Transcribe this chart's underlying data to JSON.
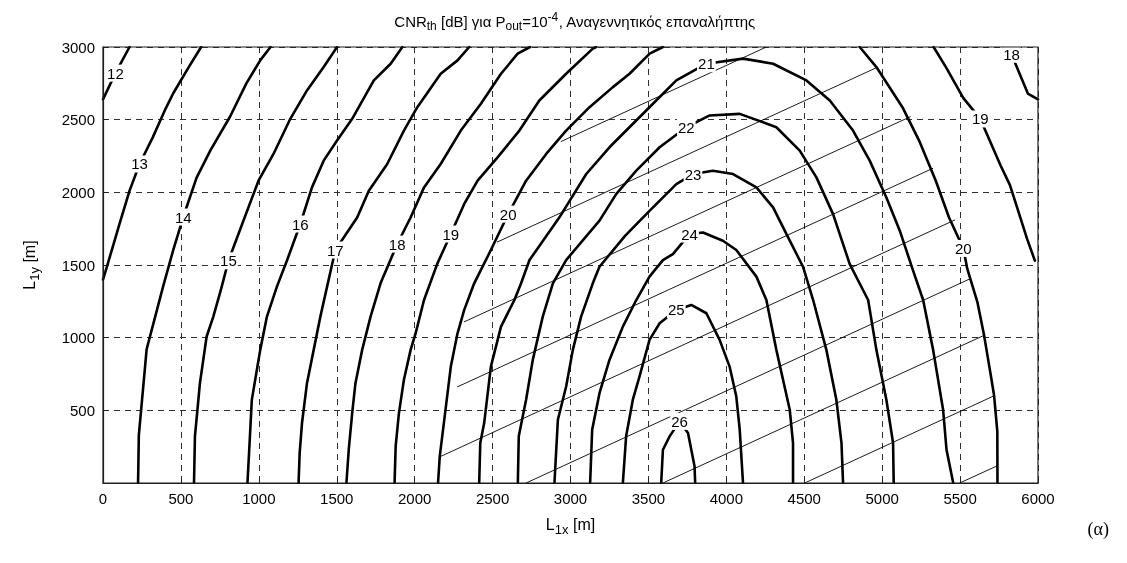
{
  "chart_data": {
    "type": "line",
    "title": "CNR$_{th}$ [dB] για P$_{out}$=10$^{-4}$, Αναγεννητικός επαναλήπτης",
    "xlabel": "L$_{1x}$ [m]",
    "ylabel": "L$_{1y}$ [m]",
    "annotations": [
      "(α)"
    ],
    "xlim": [
      0,
      6000
    ],
    "xticks": [
      0,
      500,
      1000,
      1500,
      2000,
      2500,
      3000,
      3500,
      4000,
      4500,
      5000,
      5500,
      6000
    ],
    "ylim": [
      0,
      3000
    ],
    "yticks": [
      {
        "value": 0,
        "label": null
      },
      500,
      1000,
      1500,
      2000,
      2500,
      3000
    ],
    "grid": true,
    "legend": false,
    "marker": "none",
    "line_style": "solid",
    "series": [
      {
        "name": "12",
        "color": "#000000",
        "x": [
          0,
          80,
          170
        ],
        "values": [
          2640,
          2820,
          3000
        ]
      },
      {
        "name": "13",
        "color": "#000000",
        "x": [
          0,
          20,
          75,
          105,
          170,
          235,
          320,
          395,
          450,
          555,
          630
        ],
        "values": [
          1400,
          1470,
          1670,
          1780,
          2010,
          2195,
          2380,
          2560,
          2680,
          2870,
          3000
        ]
      },
      {
        "name": "14",
        "color": "#000000",
        "x": [
          225,
          230,
          280,
          335,
          385,
          450,
          515,
          600,
          690,
          815,
          920,
          1010,
          1075
        ],
        "values": [
          0,
          330,
          920,
          1145,
          1350,
          1600,
          1830,
          2100,
          2290,
          2520,
          2750,
          2910,
          3000
        ]
      },
      {
        "name": "15",
        "color": "#000000",
        "x": [
          584,
          590,
          622,
          665,
          708,
          762,
          805,
          901,
          998,
          1094,
          1202,
          1309,
          1416,
          1502
        ],
        "values": [
          0,
          320,
          687,
          1008,
          1145,
          1351,
          1529,
          1805,
          2080,
          2264,
          2506,
          2701,
          2862,
          3000
        ]
      },
      {
        "name": "16",
        "color": "#000000",
        "x": [
          927,
          944,
          955,
          1009,
          1052,
          1116,
          1180,
          1266,
          1341,
          1416,
          1502,
          1599,
          1738,
          1846,
          1921
        ],
        "values": [
          0,
          344,
          572,
          916,
          1145,
          1351,
          1529,
          1782,
          2034,
          2218,
          2356,
          2506,
          2770,
          2885,
          3000
        ]
      },
      {
        "name": "17",
        "color": "#000000",
        "x": [
          1255,
          1262,
          1277,
          1309,
          1352,
          1395,
          1438,
          1491,
          1631,
          1706,
          1824,
          1931,
          2017,
          2167,
          2275,
          2350
        ],
        "values": [
          0,
          206,
          412,
          687,
          916,
          1145,
          1351,
          1603,
          1827,
          2011,
          2195,
          2425,
          2586,
          2816,
          2908,
          3000
        ]
      },
      {
        "name": "18",
        "color": "#000000",
        "x": [
          1562,
          1577,
          1599,
          1620,
          1663,
          1717,
          1781,
          1888,
          1974,
          2060,
          2167,
          2296,
          2425,
          2554,
          2661,
          2740
        ],
        "values": [
          0,
          229,
          481,
          687,
          916,
          1145,
          1374,
          1644,
          1827,
          2034,
          2195,
          2425,
          2609,
          2816,
          2954,
          3000
        ]
      },
      {
        "name": "18",
        "color": "#000000",
        "x": [
          5780,
          5830,
          5935,
          6000
        ],
        "values": [
          3000,
          2950,
          2680,
          2640
        ]
      },
      {
        "name": "19",
        "color": "#000000",
        "x": [
          1871,
          1878,
          1899,
          1931,
          1974,
          2006,
          2060,
          2146,
          2232,
          2318,
          2404,
          2532,
          2672,
          2800,
          2972,
          3143,
          3165
        ],
        "values": [
          0,
          252,
          481,
          710,
          916,
          1030,
          1259,
          1511,
          1713,
          1920,
          2080,
          2241,
          2425,
          2632,
          2816,
          2989,
          3000
        ]
      },
      {
        "name": "19",
        "color": "#000000",
        "x": [
          5330,
          5410,
          5520,
          5630,
          5760,
          5820,
          5930,
          5980
        ],
        "values": [
          3000,
          2860,
          2650,
          2505,
          2185,
          2050,
          1680,
          1530
        ]
      },
      {
        "name": "20",
        "color": "#000000",
        "x": [
          2150,
          2161,
          2232,
          2275,
          2318,
          2382,
          2489,
          2600,
          2715,
          2844,
          2972,
          3122,
          3272,
          3379,
          3508,
          3593
        ],
        "values": [
          0,
          183,
          801,
          1030,
          1191,
          1374,
          1603,
          1850,
          2080,
          2264,
          2425,
          2586,
          2724,
          2816,
          2954,
          3000
        ]
      },
      {
        "name": "20",
        "color": "#000000",
        "x": [
          4856,
          4963,
          5130,
          5237,
          5344,
          5429,
          5521,
          5546,
          5611,
          5654,
          5697,
          5718,
          5739,
          5740
        ],
        "values": [
          3000,
          2862,
          2586,
          2356,
          2080,
          1827,
          1614,
          1475,
          1245,
          1016,
          741,
          604,
          354,
          0
        ]
      },
      {
        "name": "21",
        "color": "#000000",
        "x": [
          2414,
          2421,
          2446,
          2489,
          2554,
          2640,
          2683,
          2737,
          2929,
          3101,
          3250,
          3486,
          3679,
          3872,
          4107,
          4300,
          4514,
          4664,
          4813,
          4920,
          5027,
          5113,
          5199,
          5263,
          5327,
          5391,
          5413,
          5456
        ],
        "values": [
          0,
          275,
          412,
          801,
          1076,
          1259,
          1374,
          1534,
          1828,
          2126,
          2310,
          2563,
          2770,
          2885,
          2920,
          2885,
          2770,
          2632,
          2425,
          2218,
          1965,
          1736,
          1460,
          1259,
          916,
          504,
          229,
          0
        ]
      },
      {
        "name": "22",
        "color": "#000000",
        "x": [
          2662,
          2668,
          2715,
          2758,
          2822,
          2887,
          2972,
          3186,
          3293,
          3422,
          3572,
          3743,
          3893,
          4086,
          4321,
          4471,
          4578,
          4685,
          4792,
          4910,
          4963,
          5027,
          5070,
          5074
        ],
        "values": [
          0,
          321,
          573,
          847,
          1145,
          1374,
          1534,
          1805,
          1988,
          2149,
          2310,
          2448,
          2529,
          2540,
          2448,
          2287,
          2103,
          1850,
          1506,
          1259,
          916,
          573,
          275,
          0
        ]
      },
      {
        "name": "23",
        "color": "#000000",
        "x": [
          2897,
          2919,
          2972,
          3015,
          3068,
          3143,
          3186,
          3350,
          3507,
          3679,
          3786,
          3914,
          4043,
          4193,
          4300,
          4386,
          4492,
          4557,
          4642,
          4706,
          4739,
          4749
        ],
        "values": [
          0,
          435,
          664,
          916,
          1145,
          1374,
          1488,
          1700,
          1873,
          2057,
          2126,
          2149,
          2126,
          2034,
          1896,
          1713,
          1488,
          1259,
          916,
          573,
          275,
          0
        ]
      },
      {
        "name": "24",
        "color": "#000000",
        "x": [
          3126,
          3139,
          3186,
          3250,
          3336,
          3422,
          3507,
          3593,
          3657,
          3764,
          3850,
          3978,
          4064,
          4193,
          4257,
          4321,
          4407,
          4428,
          4428
        ],
        "values": [
          0,
          366,
          618,
          847,
          1076,
          1259,
          1420,
          1534,
          1575,
          1713,
          1724,
          1667,
          1603,
          1420,
          1259,
          916,
          504,
          275,
          0
        ]
      },
      {
        "name": "25",
        "color": "#000000",
        "x": [
          3336,
          3357,
          3400,
          3443,
          3507,
          3572,
          3679,
          3775,
          3872,
          3957,
          4021,
          4064,
          4086,
          4107
        ],
        "values": [
          0,
          321,
          573,
          733,
          985,
          1099,
          1191,
          1225,
          1168,
          985,
          801,
          595,
          366,
          0
        ]
      },
      {
        "name": "26",
        "color": "#000000",
        "x": [
          3582,
          3593,
          3636,
          3700,
          3754,
          3796,
          3800
        ],
        "values": [
          0,
          229,
          321,
          424,
          344,
          115,
          0
        ]
      },
      {
        "color": "#000000",
        "x": [
          2940,
          4257
        ],
        "values": [
          2350,
          3000
        ]
      },
      {
        "color": "#000000",
        "x": [
          2530,
          4960
        ],
        "values": [
          1658,
          2856
        ]
      },
      {
        "color": "#000000",
        "x": [
          2318,
          5180
        ],
        "values": [
          1109,
          2520
        ]
      },
      {
        "color": "#000000",
        "x": [
          2275,
          5325
        ],
        "values": [
          662,
          2165
        ]
      },
      {
        "color": "#000000",
        "x": [
          2161,
          5465
        ],
        "values": [
          180,
          1809
        ]
      },
      {
        "color": "#000000",
        "x": [
          2715,
          5566
        ],
        "values": [
          0,
          1406
        ]
      },
      {
        "color": "#000000",
        "x": [
          3593,
          5654
        ],
        "values": [
          0,
          1016
        ]
      },
      {
        "color": "#000000",
        "x": [
          4503,
          5718
        ],
        "values": [
          0,
          600
        ]
      },
      {
        "color": "#000000",
        "x": [
          5498,
          5740
        ],
        "values": [
          0,
          119
        ]
      }
    ]
  }
}
